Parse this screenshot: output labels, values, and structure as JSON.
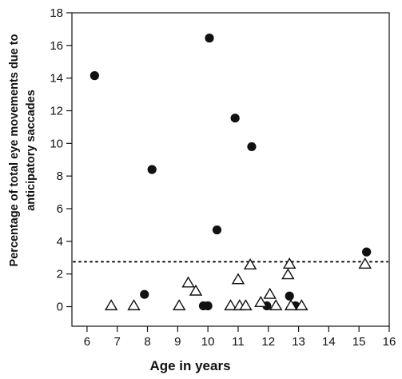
{
  "chart_data": {
    "type": "scatter",
    "title": "",
    "xlabel": "Age in years",
    "ylabel_lines": [
      "Percentage of total eye movements due to",
      "anticipatory saccades"
    ],
    "xlim": [
      5.5,
      16
    ],
    "ylim": [
      -1.2,
      18
    ],
    "xticks": [
      6,
      7,
      8,
      9,
      10,
      11,
      12,
      13,
      14,
      15,
      16
    ],
    "yticks": [
      0,
      2,
      4,
      6,
      8,
      10,
      12,
      14,
      16,
      18
    ],
    "grid": false,
    "legend": "none",
    "reference_line": {
      "y": 2.75,
      "style": "dotted"
    },
    "series": [
      {
        "marker": "filled-circle",
        "color": "#111111",
        "points": [
          [
            6.25,
            14.15
          ],
          [
            7.9,
            0.75
          ],
          [
            8.15,
            8.4
          ],
          [
            9.85,
            0.05
          ],
          [
            10.0,
            0.05
          ],
          [
            10.05,
            16.45
          ],
          [
            10.3,
            4.7
          ],
          [
            10.9,
            11.55
          ],
          [
            11.45,
            9.8
          ],
          [
            11.95,
            0.05
          ],
          [
            12.7,
            0.65
          ],
          [
            12.9,
            0.05
          ],
          [
            15.25,
            3.35
          ]
        ]
      },
      {
        "marker": "open-triangle",
        "color": "#111111",
        "points": [
          [
            6.8,
            0.05
          ],
          [
            7.55,
            0.05
          ],
          [
            9.05,
            0.05
          ],
          [
            9.35,
            1.45
          ],
          [
            9.6,
            0.95
          ],
          [
            10.75,
            0.05
          ],
          [
            11.0,
            1.65
          ],
          [
            11.05,
            0.05
          ],
          [
            11.25,
            0.05
          ],
          [
            11.4,
            2.55
          ],
          [
            11.75,
            0.25
          ],
          [
            12.05,
            0.75
          ],
          [
            12.25,
            0.05
          ],
          [
            12.65,
            1.95
          ],
          [
            12.7,
            2.6
          ],
          [
            12.75,
            0.05
          ],
          [
            13.1,
            0.05
          ],
          [
            15.2,
            2.6
          ]
        ]
      }
    ]
  }
}
